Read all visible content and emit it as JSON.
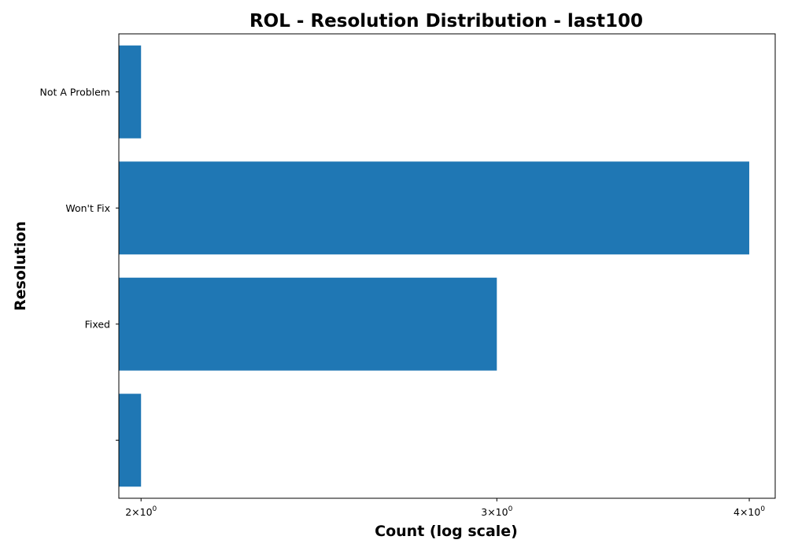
{
  "chart_data": {
    "type": "bar",
    "orientation": "horizontal",
    "title": "ROL - Resolution Distribution - last100",
    "xlabel": "Count (log scale)",
    "ylabel": "Resolution",
    "x_scale": "log",
    "xlim": [
      1.95,
      4.12
    ],
    "categories": [
      "",
      "Fixed",
      "Won't Fix",
      "Not A Problem"
    ],
    "values": [
      2,
      3,
      4,
      2
    ],
    "x_ticks": [
      {
        "value": 2,
        "base": "2×10",
        "exp": "0"
      },
      {
        "value": 3,
        "base": "3×10",
        "exp": "0"
      },
      {
        "value": 4,
        "base": "4×10",
        "exp": "0"
      }
    ],
    "bar_color": "#1f77b4",
    "grid": false,
    "legend": "none"
  }
}
